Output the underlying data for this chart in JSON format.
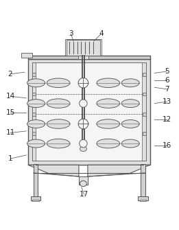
{
  "line_color": "#555555",
  "fill_gray": "#d0d0d0",
  "fill_light": "#e0e0e0",
  "fill_white": "#f5f5f5",
  "label_color": "#222222",
  "figsize": [
    2.61,
    3.35
  ],
  "dpi": 100,
  "labels": {
    "1": [
      0.055,
      0.255,
      0.145,
      0.275
    ],
    "2": [
      0.055,
      0.73,
      0.135,
      0.74
    ],
    "3": [
      0.395,
      0.955,
      0.41,
      0.915
    ],
    "4": [
      0.565,
      0.955,
      0.525,
      0.915
    ],
    "5": [
      0.935,
      0.745,
      0.865,
      0.735
    ],
    "6": [
      0.935,
      0.695,
      0.865,
      0.695
    ],
    "7": [
      0.935,
      0.645,
      0.865,
      0.655
    ],
    "11": [
      0.055,
      0.4,
      0.145,
      0.41
    ],
    "12": [
      0.935,
      0.475,
      0.865,
      0.475
    ],
    "13": [
      0.935,
      0.575,
      0.865,
      0.565
    ],
    "14": [
      0.055,
      0.605,
      0.145,
      0.595
    ],
    "15": [
      0.055,
      0.515,
      0.145,
      0.515
    ],
    "16": [
      0.935,
      0.33,
      0.865,
      0.33
    ],
    "17": [
      0.47,
      0.055,
      0.455,
      0.095
    ]
  }
}
